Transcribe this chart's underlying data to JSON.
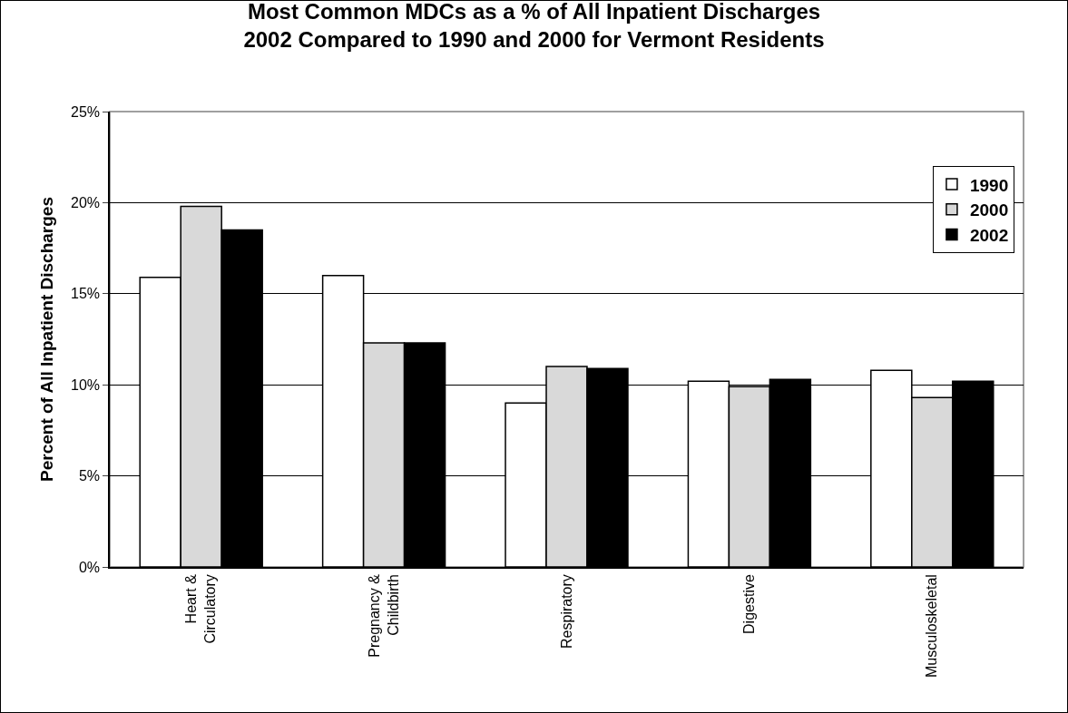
{
  "chart_data": {
    "type": "bar",
    "title": "Most Common MDCs as a % of All Inpatient Discharges\n2002 Compared to 1990 and 2000 for Vermont Residents",
    "ylabel": "Percent of All Inpatient Discharges",
    "categories": [
      "Heart & Circulatory",
      "Pregnancy & Childbirth",
      "Respiratory",
      "Digestive",
      "Musculoskeletal"
    ],
    "series": [
      {
        "name": "1990",
        "color": "#ffffff",
        "values": [
          15.9,
          16.0,
          9.0,
          10.2,
          10.8
        ]
      },
      {
        "name": "2000",
        "color": "#d9d9d9",
        "values": [
          19.8,
          12.3,
          11.0,
          9.9,
          9.3
        ]
      },
      {
        "name": "2002",
        "color": "#000000",
        "values": [
          18.5,
          12.3,
          10.9,
          10.3,
          10.2
        ]
      }
    ],
    "ylim": [
      0,
      25
    ],
    "yticks": [
      {
        "value": 0,
        "label": "0%"
      },
      {
        "value": 5,
        "label": "5%"
      },
      {
        "value": 10,
        "label": "10%"
      },
      {
        "value": 15,
        "label": "15%"
      },
      {
        "value": 20,
        "label": "20%"
      },
      {
        "value": 25,
        "label": "25%"
      }
    ],
    "grid": "y",
    "legend": "top right"
  }
}
